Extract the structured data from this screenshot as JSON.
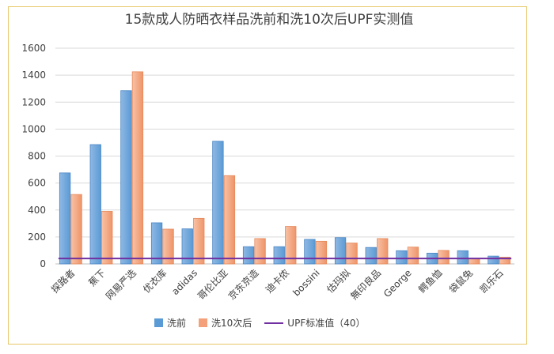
{
  "chart_data": {
    "type": "bar",
    "title": "15款成人防晒衣样品洗前和洗10次后UPF实测值",
    "categories": [
      "探路者",
      "蕉下",
      "网易严选",
      "优衣库",
      "adidas",
      "哥伦比亚",
      "京东京造",
      "迪卡侬",
      "bossini",
      "估玛拟",
      "無印良品",
      "George",
      "鳄鱼恤",
      "袋鼠兔",
      "凯乐石"
    ],
    "series": [
      {
        "name": "洗前",
        "color": "#5b9bd5",
        "values": [
          675,
          885,
          1285,
          305,
          260,
          910,
          128,
          128,
          182,
          195,
          122,
          98,
          80,
          98,
          58
        ]
      },
      {
        "name": "洗10次后",
        "color": "#f4a07a",
        "values": [
          515,
          390,
          1425,
          258,
          338,
          655,
          188,
          278,
          168,
          155,
          188,
          125,
          100,
          42,
          50
        ]
      }
    ],
    "reference_line": {
      "name": "UPF标准值（40）",
      "value": 40,
      "color": "#7030a0"
    },
    "ylim": [
      0,
      1600
    ],
    "yticks": [
      0,
      200,
      400,
      600,
      800,
      1000,
      1200,
      1400,
      1600
    ],
    "grid": true,
    "legend": "bottom"
  }
}
